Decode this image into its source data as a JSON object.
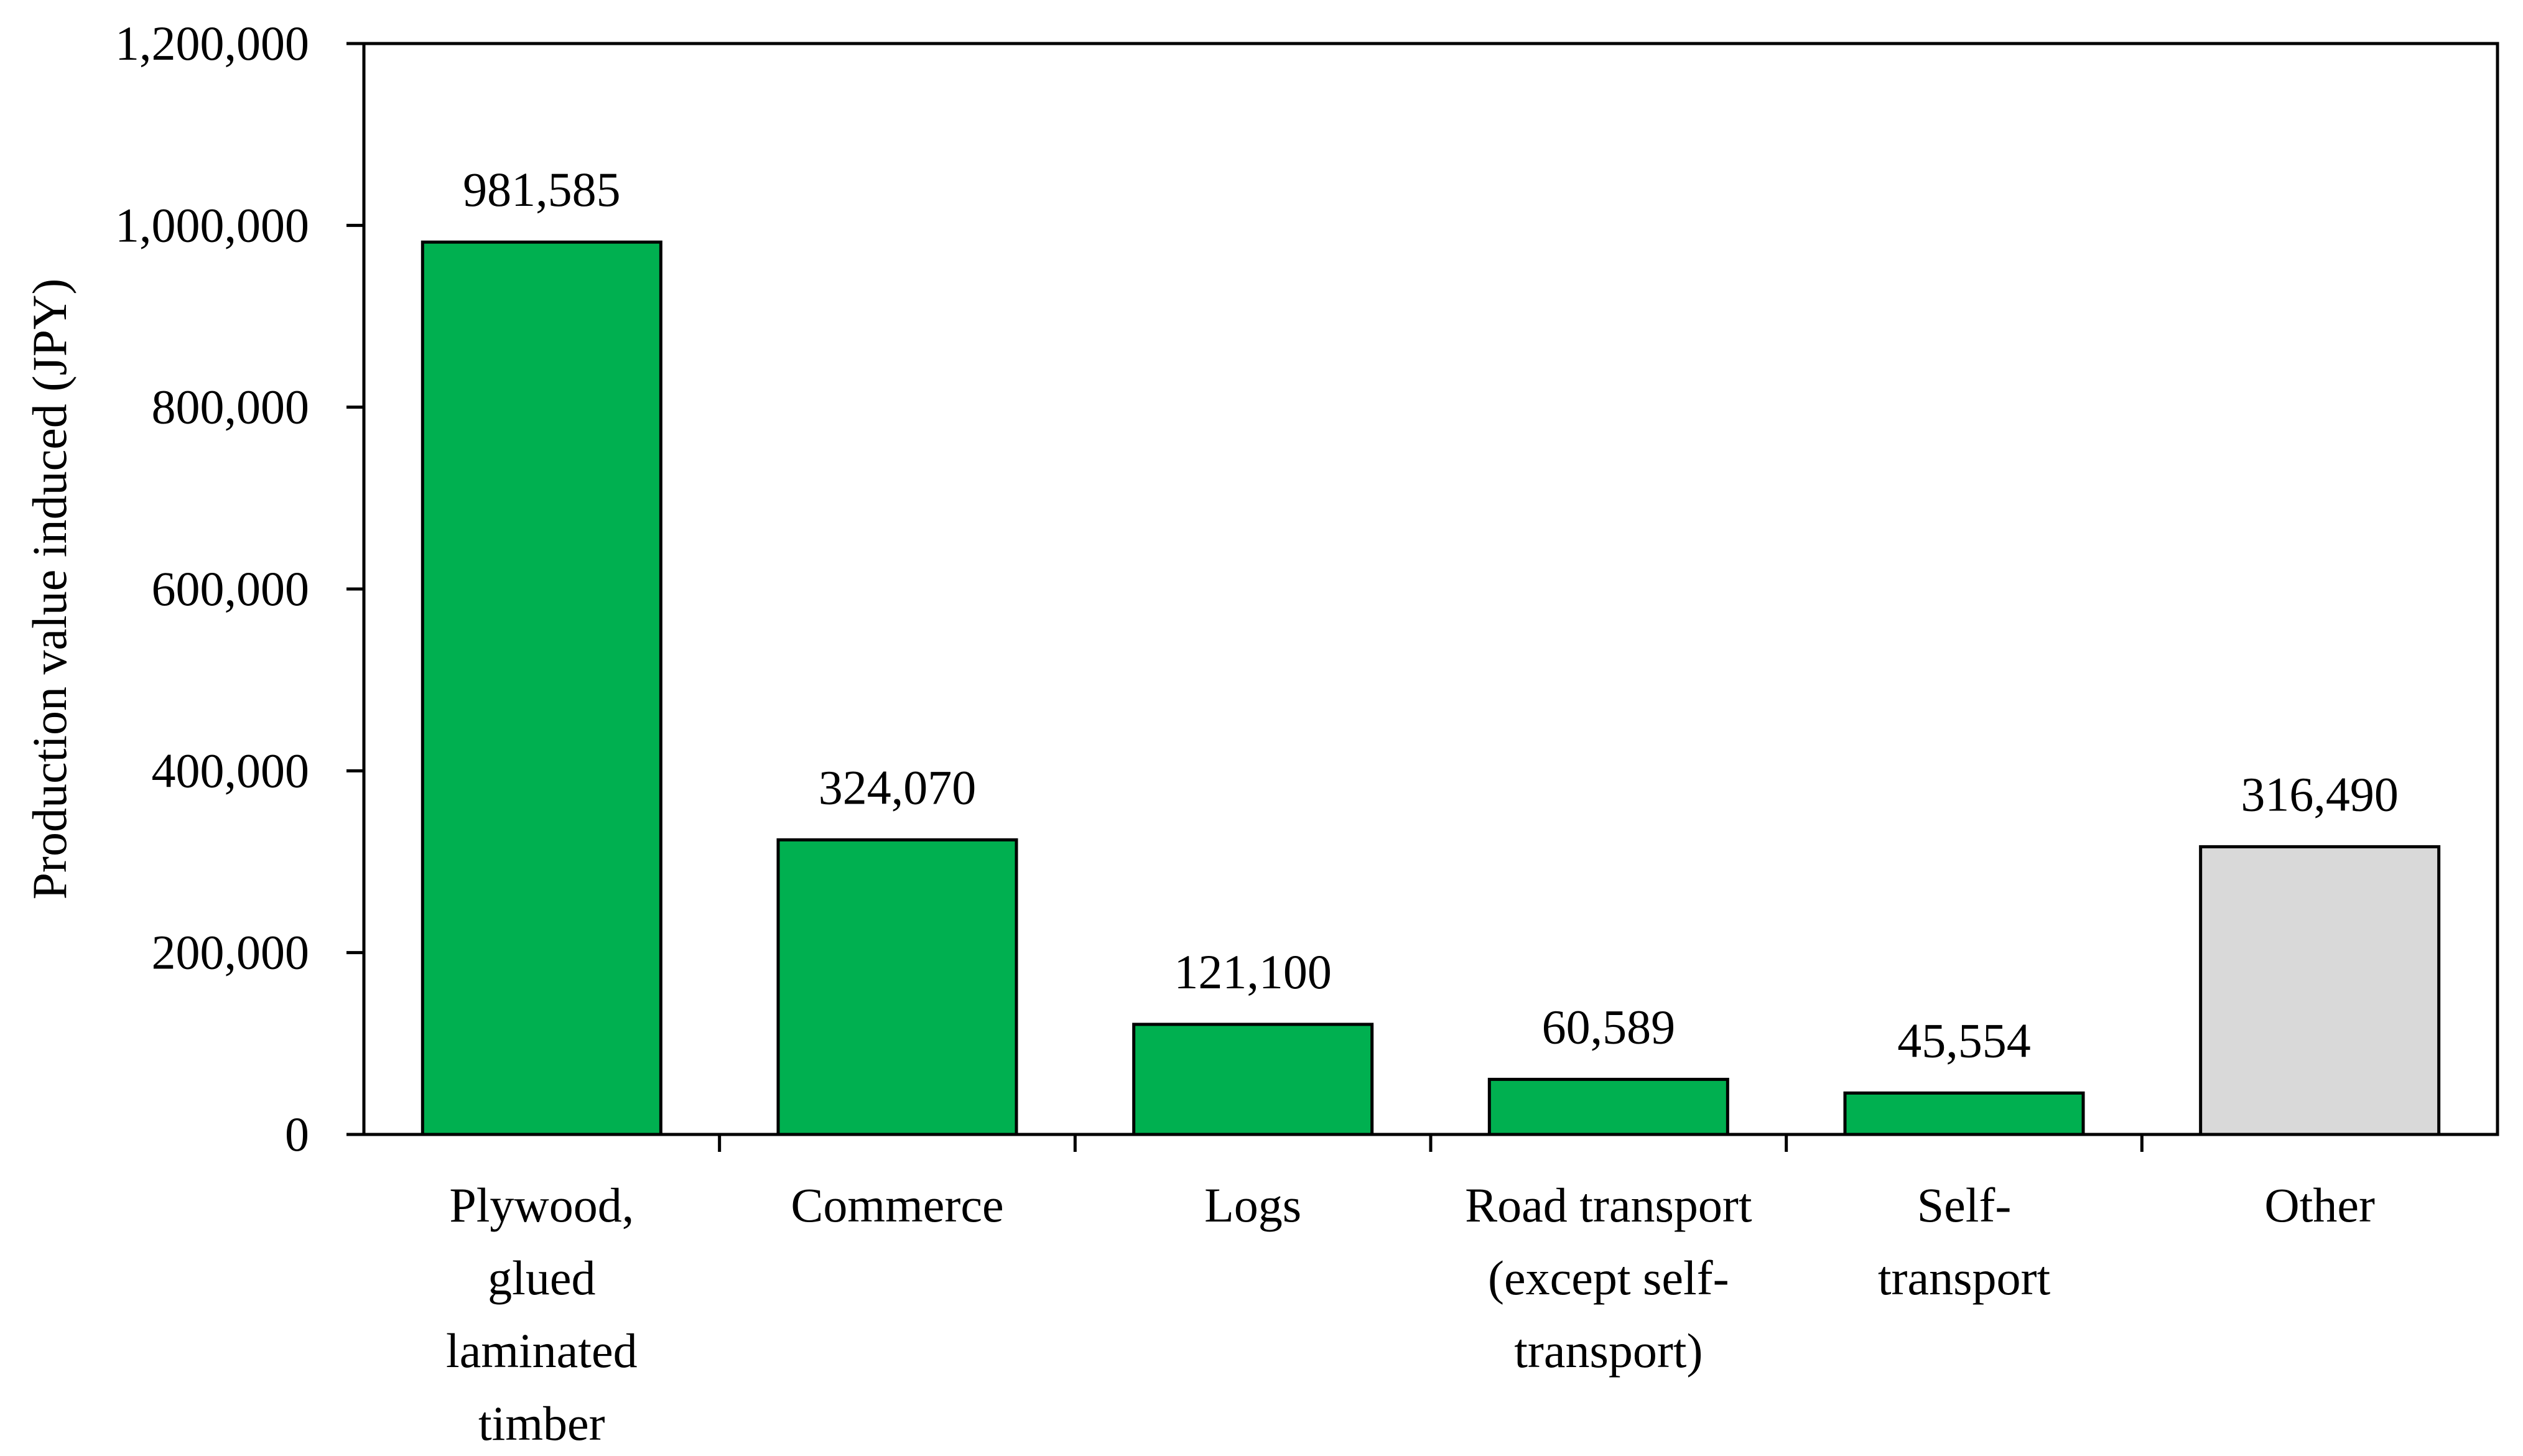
{
  "chart_data": {
    "type": "bar",
    "title": "",
    "xlabel": "",
    "ylabel": "Production value induced (JPY)",
    "ylim": [
      0,
      1200000
    ],
    "yticks": [
      0,
      200000,
      400000,
      600000,
      800000,
      1000000,
      1200000
    ],
    "ytick_labels": [
      "0",
      "200,000",
      "400,000",
      "600,000",
      "800,000",
      "1,000,000",
      "1,200,000"
    ],
    "grid": false,
    "legend": "none",
    "categories": [
      "Plywood, glued laminated timber",
      "Commerce",
      "Logs",
      "Road transport (except self-transport)",
      "Self-transport",
      "Other"
    ],
    "category_label_lines": [
      [
        "Plywood,",
        "glued",
        "laminated",
        "timber"
      ],
      [
        "Commerce"
      ],
      [
        "Logs"
      ],
      [
        "Road transport",
        "(except self-",
        "transport)"
      ],
      [
        "Self-",
        "transport"
      ],
      [
        "Other"
      ]
    ],
    "values": [
      981585,
      324070,
      121100,
      60589,
      45554,
      316490
    ],
    "data_labels": [
      "981,585",
      "324,070",
      "121,100",
      "60,589",
      "45,554",
      "316,490"
    ],
    "bar_colors": [
      "#00B050",
      "#00B050",
      "#00B050",
      "#00B050",
      "#00B050",
      "#D9D9D9"
    ]
  }
}
